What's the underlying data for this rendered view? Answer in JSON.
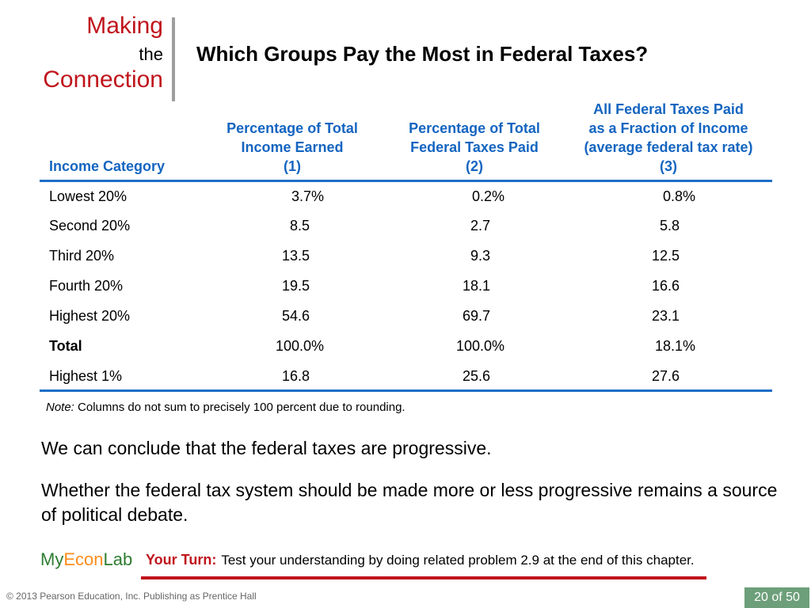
{
  "brand": {
    "making": "Making",
    "the": "the",
    "connection": "Connection"
  },
  "title": "Which Groups Pay the Most in Federal Taxes?",
  "table": {
    "headers": {
      "category": "Income Category",
      "col1": [
        "Percentage of Total",
        "Income Earned",
        "(1)"
      ],
      "col2": [
        "Percentage of Total",
        "Federal Taxes Paid",
        "(2)"
      ],
      "col3": [
        "All Federal Taxes Paid",
        "as a Fraction of Income",
        "(average federal tax rate)",
        "(3)"
      ]
    },
    "rows": [
      {
        "category": "Lowest 20%",
        "c1": "3.7%",
        "c2": "0.2%",
        "c3": "0.8%",
        "bold": false
      },
      {
        "category": "Second 20%",
        "c1": "8.5",
        "c2": "2.7",
        "c3": "5.8",
        "bold": false
      },
      {
        "category": "Third 20%",
        "c1": "13.5",
        "c2": "9.3",
        "c3": "12.5",
        "bold": false
      },
      {
        "category": "Fourth 20%",
        "c1": "19.5",
        "c2": "18.1",
        "c3": "16.6",
        "bold": false
      },
      {
        "category": "Highest 20%",
        "c1": "54.6",
        "c2": "69.7",
        "c3": "23.1",
        "bold": false
      },
      {
        "category": "Total",
        "c1": "100.0%",
        "c2": "100.0%",
        "c3": "18.1%",
        "bold": true
      },
      {
        "category": "Highest 1%",
        "c1": "16.8",
        "c2": "25.6",
        "c3": "27.6",
        "bold": false
      }
    ]
  },
  "note": {
    "label": "Note:",
    "text": " Columns do not sum to precisely 100 percent due to rounding."
  },
  "conclusion": "We can conclude that the federal taxes are progressive.",
  "debate": "Whether the federal tax system should be made more or less progressive remains a source of political debate.",
  "myeconlab": {
    "my": "My",
    "econ": "Econ",
    "lab": "Lab"
  },
  "your_turn": {
    "label": "Your Turn:",
    "text": "Test your understanding by doing related problem 2.9 at the end of this chapter."
  },
  "footer": "© 2013 Pearson Education, Inc. Publishing as Prentice Hall",
  "page": "20 of 50",
  "colors": {
    "accent_red": "#c0141c",
    "header_blue": "#1565c0",
    "rule_blue": "#1e6ec8",
    "page_box": "#6d9f7a"
  }
}
